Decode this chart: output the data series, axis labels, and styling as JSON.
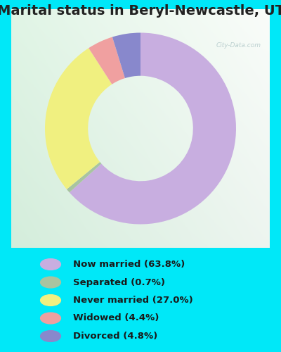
{
  "title": "Marital status in Beryl-Newcastle, UT",
  "categories": [
    "Now married",
    "Separated",
    "Never married",
    "Widowed",
    "Divorced"
  ],
  "values": [
    63.8,
    0.7,
    27.0,
    4.4,
    4.8
  ],
  "colors": [
    "#c8aee0",
    "#a8c4a0",
    "#f0f080",
    "#f0a0a0",
    "#8888cc"
  ],
  "legend_labels": [
    "Now married (63.8%)",
    "Separated (0.7%)",
    "Never married (27.0%)",
    "Widowed (4.4%)",
    "Divorced (4.8%)"
  ],
  "bg_legend": "#00e8f8",
  "title_fontsize": 14,
  "donut_width": 0.45,
  "start_angle": 90,
  "watermark": "City-Data.com",
  "title_color": "#222222"
}
